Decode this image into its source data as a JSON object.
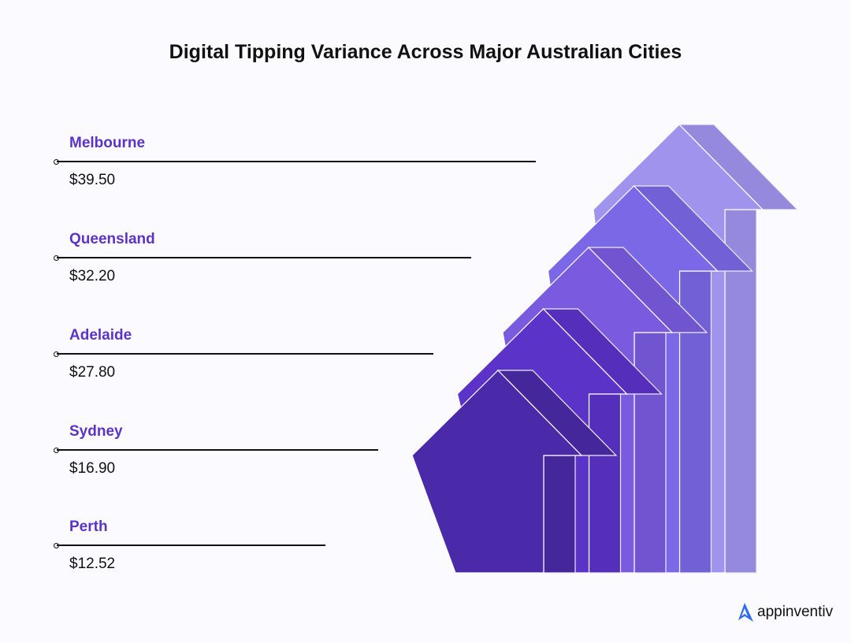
{
  "chart_data": {
    "type": "bar",
    "title": "Digital Tipping Variance Across Major Australian Cities",
    "categories": [
      "Melbourne",
      "Queensland",
      "Adelaide",
      "Sydney",
      "Perth"
    ],
    "values": [
      39.5,
      32.2,
      27.8,
      16.9,
      12.52
    ],
    "value_labels": [
      "$39.50",
      "$32.20",
      "$27.80",
      "$16.90",
      "$12.52"
    ],
    "label_color": "#5b33c9",
    "arrow_colors": [
      "#a093ee",
      "#7b68e6",
      "#7a5be0",
      "#5b33c9",
      "#4a2aa8"
    ]
  },
  "brand": {
    "name": "appinventiv",
    "color": "#2f6bf0"
  }
}
